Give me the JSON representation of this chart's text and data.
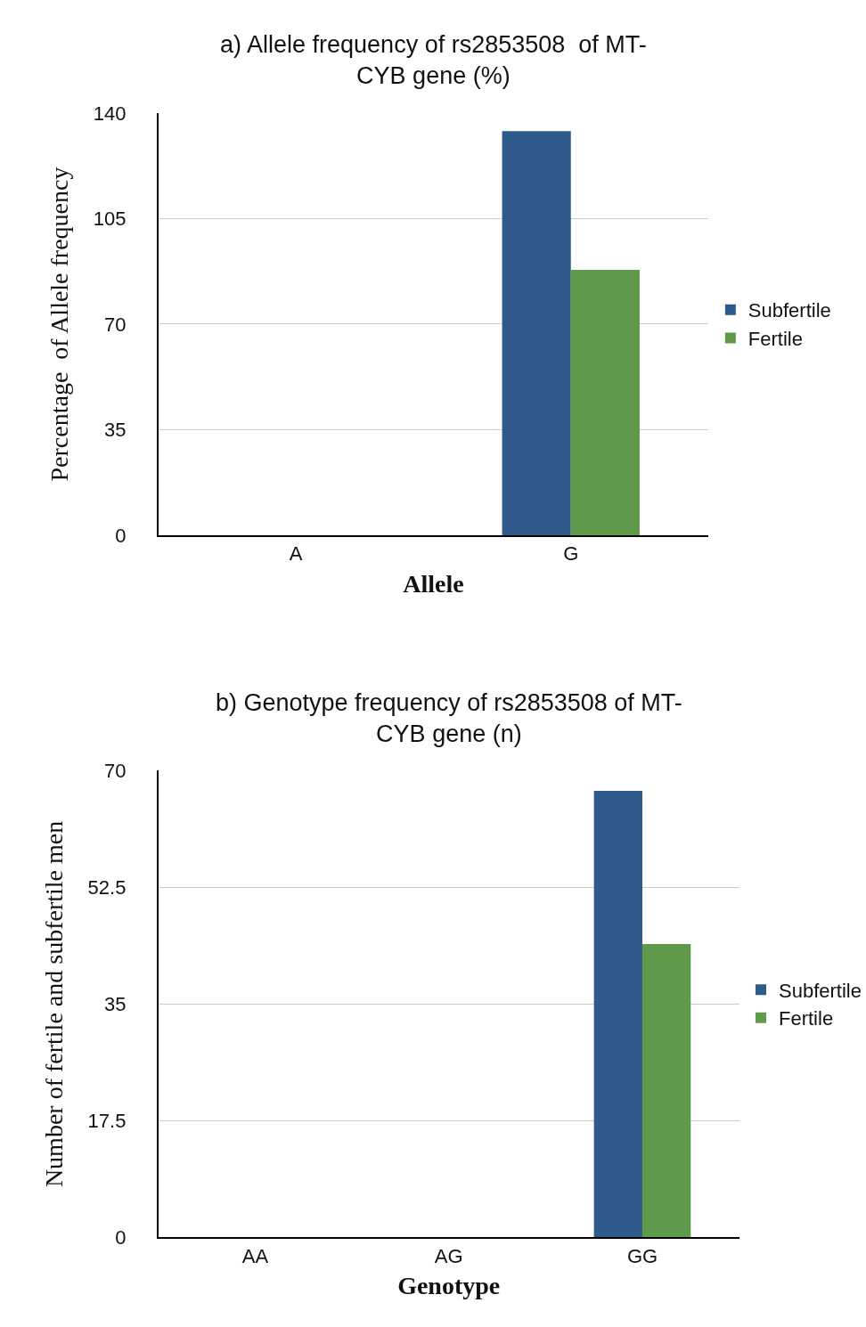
{
  "chart_data": [
    {
      "type": "bar",
      "title": "a) Allele frequency of rs2853508  of MT-\nCYB gene (%)",
      "xlabel": "Allele",
      "ylabel": "Percentage  of Allele frequency",
      "categories": [
        "A",
        "G"
      ],
      "series": [
        {
          "name": "Subfertile",
          "color": "#2e5a8c",
          "values": [
            0,
            134
          ]
        },
        {
          "name": "Fertile",
          "color": "#5f9a4a",
          "values": [
            0,
            88
          ]
        }
      ],
      "ylim": [
        0,
        140
      ],
      "yticks": [
        0,
        35,
        70,
        105,
        140
      ],
      "grid": "y",
      "legend": "right"
    },
    {
      "type": "bar",
      "title": "b) Genotype frequency of rs2853508 of MT-\nCYB gene (n)",
      "xlabel": "Genotype",
      "ylabel": "Number of fertile and subfertile men",
      "categories": [
        "AA",
        "AG",
        "GG"
      ],
      "series": [
        {
          "name": "Subfertile",
          "color": "#2e5a8c",
          "values": [
            0,
            0,
            67
          ]
        },
        {
          "name": "Fertile",
          "color": "#5f9a4a",
          "values": [
            0,
            0,
            44
          ]
        }
      ],
      "ylim": [
        0,
        70
      ],
      "yticks": [
        0,
        17.5,
        35,
        52.5,
        70
      ],
      "grid": "y",
      "legend": "right"
    }
  ]
}
